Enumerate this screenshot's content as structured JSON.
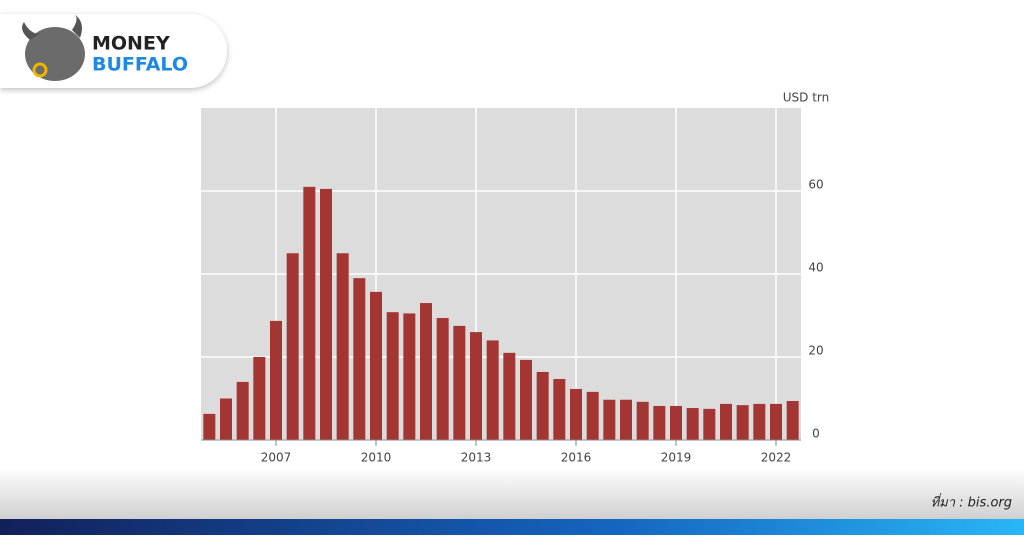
{
  "brand": {
    "line1": "MONEY",
    "line2": "BUFFALO"
  },
  "source": "ที่มา : bis.org",
  "chart_data": {
    "type": "bar",
    "y_label": "USD trn",
    "x": [
      2005,
      2005.5,
      2006,
      2006.5,
      2007,
      2007.5,
      2008,
      2008.5,
      2009,
      2009.5,
      2010,
      2010.5,
      2011,
      2011.5,
      2012,
      2012.5,
      2013,
      2013.5,
      2014,
      2014.5,
      2015,
      2015.5,
      2016,
      2016.5,
      2017,
      2017.5,
      2018,
      2018.5,
      2019,
      2019.5,
      2020,
      2020.5,
      2021,
      2021.5,
      2022,
      2022.5
    ],
    "values": [
      6.3,
      10,
      14,
      20,
      28.7,
      45,
      61,
      60.5,
      45,
      39,
      35.7,
      30.8,
      30.5,
      33,
      29.4,
      27.5,
      26,
      24,
      21,
      19.3,
      16.4,
      14.7,
      12.3,
      11.6,
      9.7,
      9.7,
      9.2,
      8.2,
      8.2,
      7.7,
      7.5,
      8.7,
      8.4,
      8.7,
      8.7,
      9.4
    ],
    "color": "#a33533",
    "xlim": [
      2004.75,
      2022.75
    ],
    "xticks": [
      2007,
      2010,
      2013,
      2016,
      2019,
      2022
    ],
    "ylim": [
      0,
      80
    ],
    "yticks": [
      0,
      20,
      40,
      60
    ],
    "grid": true
  }
}
